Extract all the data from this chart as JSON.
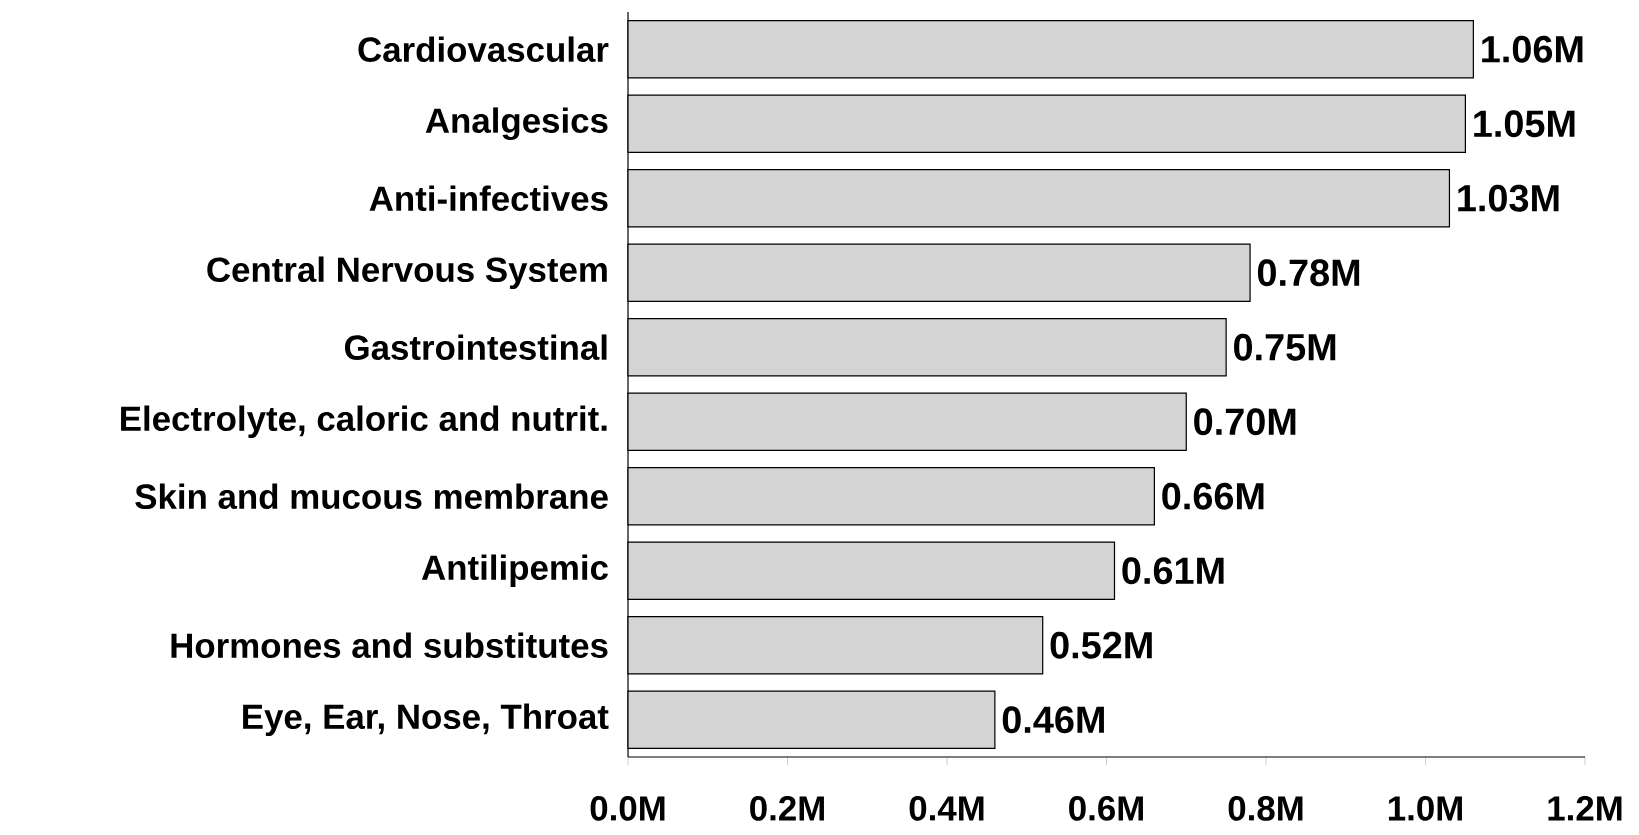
{
  "chart_data": {
    "type": "bar",
    "orientation": "horizontal",
    "categories": [
      "Cardiovascular",
      "Analgesics",
      "Anti-infectives",
      "Central Nervous System",
      "Gastrointestinal",
      "Electrolyte, caloric and nutrit.",
      "Skin and mucous membrane",
      "Antilipemic",
      "Hormones and substitutes",
      "Eye, Ear, Nose, Throat"
    ],
    "values": [
      1.06,
      1.05,
      1.03,
      0.78,
      0.75,
      0.7,
      0.66,
      0.61,
      0.52,
      0.46
    ],
    "value_labels": [
      "1.06M",
      "1.05M",
      "1.03M",
      "0.78M",
      "0.75M",
      "0.70M",
      "0.66M",
      "0.61M",
      "0.52M",
      "0.46M"
    ],
    "color": "#d4d4d4",
    "xlim": [
      0,
      1.2
    ],
    "xticks": [
      {
        "value": 0,
        "label": "0.0M"
      },
      {
        "value": 0.2,
        "label": "0.2M"
      },
      {
        "value": 0.4,
        "label": "0.4M"
      },
      {
        "value": 0.6,
        "label": "0.6M"
      },
      {
        "value": 0.8,
        "label": "0.8M"
      },
      {
        "value": 1.0,
        "label": "1.0M"
      },
      {
        "value": 1.2,
        "label": "1.2M"
      }
    ],
    "grid": false
  }
}
